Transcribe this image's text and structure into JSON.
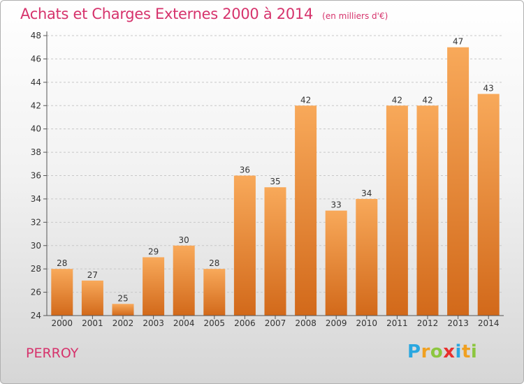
{
  "header": {
    "title": "Achats et Charges Externes 2000 à 2014",
    "unit": "(en milliers d'€)"
  },
  "footer": {
    "place": "PERROY",
    "logo": [
      {
        "ch": "P",
        "color": "#2aa7e0"
      },
      {
        "ch": "r",
        "color": "#f0a020"
      },
      {
        "ch": "o",
        "color": "#8cc63f"
      },
      {
        "ch": "x",
        "color": "#e8302e"
      },
      {
        "ch": "i",
        "color": "#2aa7e0"
      },
      {
        "ch": "t",
        "color": "#f0a020"
      },
      {
        "ch": "i",
        "color": "#8cc63f"
      }
    ]
  },
  "colors": {
    "title": "#d6336c",
    "bar_top": "#f8a95a",
    "bar_bottom": "#d2691a",
    "grid": "#c8c8c8",
    "axis": "#555555"
  },
  "chart_data": {
    "type": "bar",
    "title": "Achats et Charges Externes 2000 à 2014",
    "subtitle": "(en milliers d'€)",
    "categories": [
      "2000",
      "2001",
      "2002",
      "2003",
      "2004",
      "2005",
      "2006",
      "2007",
      "2008",
      "2009",
      "2010",
      "2011",
      "2012",
      "2013",
      "2014"
    ],
    "values": [
      28,
      27,
      25,
      29,
      30,
      28,
      36,
      35,
      42,
      33,
      34,
      42,
      42,
      47,
      43
    ],
    "ylim": [
      24,
      48
    ],
    "yticks": [
      24,
      26,
      28,
      30,
      32,
      34,
      36,
      38,
      40,
      42,
      44,
      46,
      48
    ],
    "xlabel": "",
    "ylabel": "",
    "grid": "horizontal dashed",
    "legend": "none"
  }
}
